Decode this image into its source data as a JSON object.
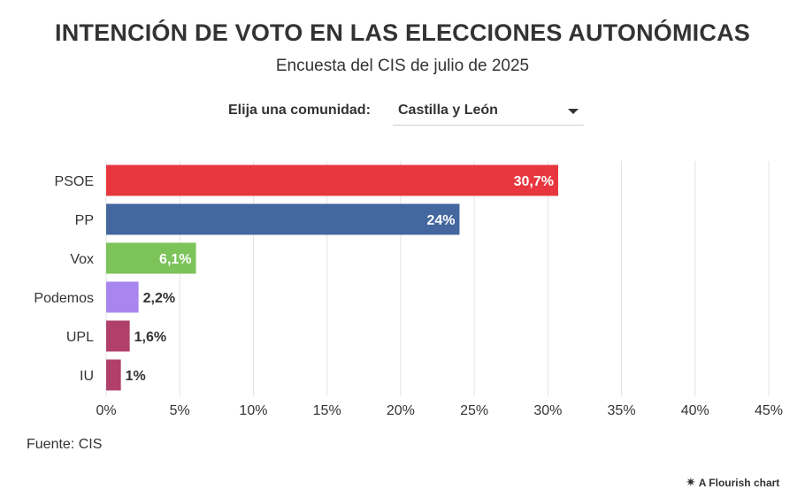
{
  "chart_data": {
    "type": "bar",
    "orientation": "horizontal",
    "title": "INTENCIÓN DE VOTO EN LAS ELECCIONES AUTONÓMICAS",
    "subtitle": "Encuesta del CIS de julio de 2025",
    "categories": [
      "PSOE",
      "PP",
      "Vox",
      "Podemos",
      "UPL",
      "IU"
    ],
    "values": [
      30.7,
      24,
      6.1,
      2.2,
      1.6,
      1
    ],
    "value_labels": [
      "30,7%",
      "24%",
      "6,1%",
      "2,2%",
      "1,6%",
      "1%"
    ],
    "colors": [
      "#e8363e",
      "#44679f",
      "#7cc35a",
      "#a985f0",
      "#b03f6a",
      "#b03f6a"
    ],
    "xlim": [
      0,
      45
    ],
    "xticks": [
      0,
      5,
      10,
      15,
      20,
      25,
      30,
      35,
      40,
      45
    ],
    "xtick_labels": [
      "0%",
      "5%",
      "10%",
      "15%",
      "20%",
      "25%",
      "30%",
      "35%",
      "40%",
      "45%"
    ],
    "xlabel": "",
    "ylabel": "",
    "grid": true
  },
  "control": {
    "label": "Elija una comunidad:",
    "selected": "Castilla y León"
  },
  "source": "Fuente: CIS",
  "footer": {
    "icon": "flourish-logo-icon",
    "text": "A Flourish chart"
  }
}
